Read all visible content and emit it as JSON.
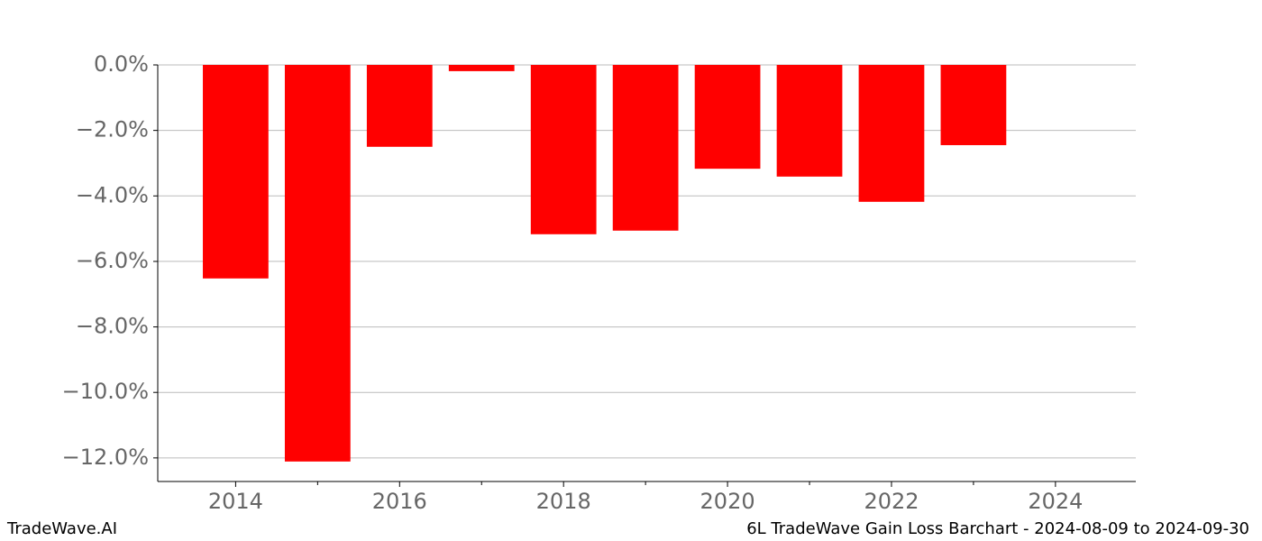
{
  "chart_data": {
    "type": "bar",
    "title": "6L TradeWave Gain Loss Barchart - 2024-08-09 to 2024-09-30",
    "watermark": "TradeWave.AI",
    "x": [
      2014,
      2015,
      2016,
      2017,
      2018,
      2019,
      2020,
      2021,
      2022,
      2023
    ],
    "values": [
      -6.52,
      -12.11,
      -2.5,
      -0.19,
      -5.17,
      -5.06,
      -3.17,
      -3.41,
      -4.18,
      -2.45
    ],
    "color": "#ff0000",
    "xlim": [
      2013.05,
      2024.98
    ],
    "xticks": [
      2014,
      2016,
      2018,
      2020,
      2022,
      2024
    ],
    "xminorticks": [
      2015,
      2017,
      2019,
      2021,
      2023
    ],
    "ylim": [
      -12.72,
      0
    ],
    "yticks": [
      {
        "value": 0,
        "label": "0.0%"
      },
      {
        "value": -2,
        "label": "−2.0%"
      },
      {
        "value": -4,
        "label": "−4.0%"
      },
      {
        "value": -6,
        "label": "−6.0%"
      },
      {
        "value": -8,
        "label": "−8.0%"
      },
      {
        "value": -10,
        "label": "−10.0%"
      },
      {
        "value": -12,
        "label": "−12.0%"
      }
    ],
    "grid": true
  }
}
